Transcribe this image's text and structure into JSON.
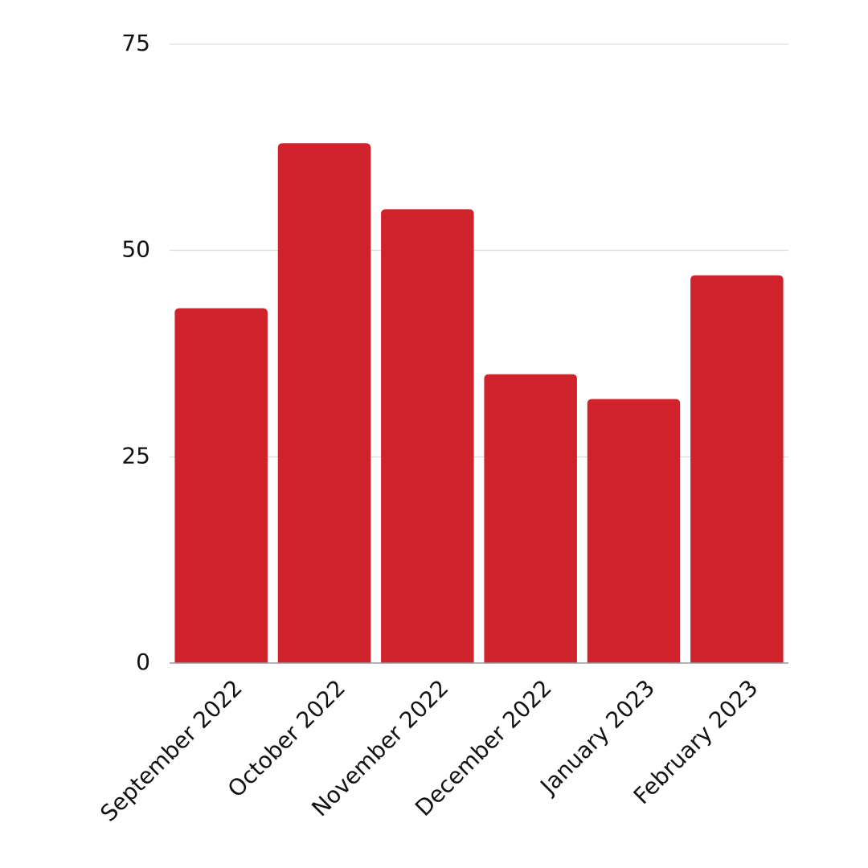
{
  "chart_data": {
    "type": "bar",
    "categories": [
      "September 2022",
      "October 2022",
      "November 2022",
      "December 2022",
      "January 2023",
      "February 2023"
    ],
    "values": [
      43,
      63,
      55,
      35,
      32,
      47
    ],
    "color": "#d0222a",
    "ylim": [
      0,
      75
    ],
    "yticks": [
      0,
      25,
      50,
      75
    ],
    "grid": true
  }
}
